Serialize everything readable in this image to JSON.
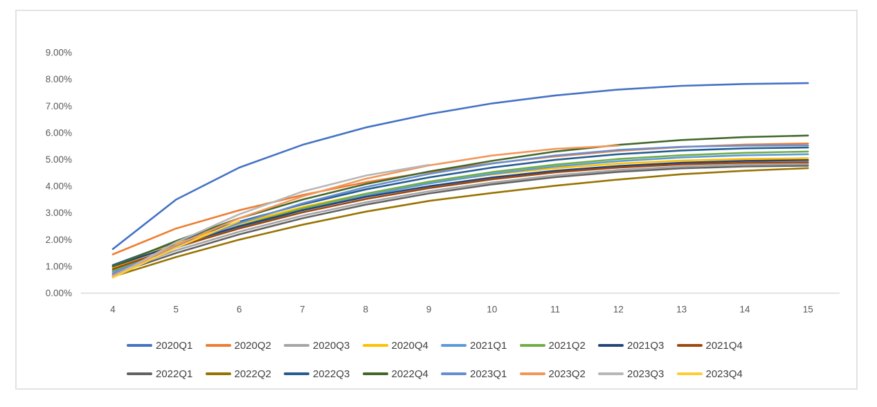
{
  "chart_data": {
    "type": "line",
    "title": "",
    "xlabel": "",
    "ylabel": "",
    "grid": false,
    "legend_position": "bottom",
    "x_ticks": [
      "4",
      "5",
      "6",
      "7",
      "8",
      "9",
      "10",
      "11",
      "12",
      "13",
      "14",
      "15"
    ],
    "y_ticks": [
      "0.00%",
      "1.00%",
      "2.00%",
      "3.00%",
      "4.00%",
      "5.00%",
      "6.00%",
      "7.00%",
      "8.00%",
      "9.00%"
    ],
    "x_range": [
      4,
      15
    ],
    "y_range_percent": [
      0,
      9
    ],
    "x_start": 4,
    "series": [
      {
        "name": "2020Q1",
        "color": "#4472C4",
        "values": [
          1.65,
          3.5,
          4.7,
          5.55,
          6.2,
          6.7,
          7.1,
          7.4,
          7.62,
          7.76,
          7.83,
          7.86
        ]
      },
      {
        "name": "2020Q2",
        "color": "#ED7D31",
        "values": [
          1.45,
          2.42,
          3.1,
          3.67,
          4.15,
          4.53,
          4.86,
          5.12,
          5.33,
          5.47,
          5.56,
          5.6
        ]
      },
      {
        "name": "2020Q3",
        "color": "#A5A5A5",
        "values": [
          0.75,
          1.6,
          2.3,
          2.9,
          3.4,
          3.81,
          4.14,
          4.41,
          4.61,
          4.74,
          4.81,
          4.84
        ]
      },
      {
        "name": "2020Q4",
        "color": "#FFC000",
        "values": [
          0.95,
          1.85,
          2.6,
          3.22,
          3.72,
          4.12,
          4.44,
          4.68,
          4.85,
          4.96,
          5.02,
          5.05
        ]
      },
      {
        "name": "2021Q1",
        "color": "#5B9BD5",
        "values": [
          0.8,
          1.7,
          2.45,
          3.1,
          3.65,
          4.1,
          4.46,
          4.74,
          4.94,
          5.08,
          5.16,
          5.2
        ]
      },
      {
        "name": "2021Q2",
        "color": "#70AD47",
        "values": [
          0.85,
          1.75,
          2.52,
          3.17,
          3.72,
          4.17,
          4.53,
          4.81,
          5.02,
          5.16,
          5.25,
          5.3
        ]
      },
      {
        "name": "2021Q3",
        "color": "#264478",
        "values": [
          1.0,
          1.8,
          2.5,
          3.1,
          3.6,
          4.0,
          4.33,
          4.58,
          4.76,
          4.88,
          4.95,
          4.98
        ]
      },
      {
        "name": "2021Q4",
        "color": "#9E480E",
        "values": [
          0.9,
          1.72,
          2.42,
          3.02,
          3.52,
          3.93,
          4.26,
          4.52,
          4.7,
          4.82,
          4.88,
          4.9
        ]
      },
      {
        "name": "2022Q1",
        "color": "#636363",
        "values": [
          0.7,
          1.5,
          2.2,
          2.8,
          3.31,
          3.73,
          4.07,
          4.34,
          4.54,
          4.67,
          4.74,
          4.77
        ]
      },
      {
        "name": "2022Q2",
        "color": "#997300",
        "values": [
          0.62,
          1.35,
          2.0,
          2.56,
          3.05,
          3.45,
          3.75,
          4.02,
          4.25,
          4.45,
          4.58,
          4.68
        ]
      },
      {
        "name": "2022Q3",
        "color": "#255E91",
        "values": [
          1.05,
          1.92,
          2.67,
          3.32,
          3.88,
          4.33,
          4.7,
          4.99,
          5.2,
          5.34,
          5.42,
          5.45
        ]
      },
      {
        "name": "2022Q4",
        "color": "#43682B",
        "values": [
          1.0,
          1.95,
          2.8,
          3.5,
          4.08,
          4.55,
          4.95,
          5.3,
          5.55,
          5.73,
          5.84,
          5.9
        ]
      },
      {
        "name": "2023Q1",
        "color": "#698ED0",
        "values": [
          0.72,
          1.75,
          2.62,
          3.36,
          3.97,
          4.46,
          4.85,
          5.15,
          5.36,
          5.48,
          5.52,
          5.53
        ]
      },
      {
        "name": "2023Q2",
        "color": "#F1975A",
        "values": [
          0.65,
          1.8,
          2.8,
          3.62,
          4.28,
          4.78,
          5.15,
          5.4,
          5.52
        ]
      },
      {
        "name": "2023Q3",
        "color": "#B7B7B7",
        "values": [
          0.6,
          1.9,
          2.95,
          3.8,
          4.4,
          4.8
        ]
      },
      {
        "name": "2023Q4",
        "color": "#FFCD33",
        "values": [
          0.58,
          1.7,
          2.7
        ]
      }
    ]
  },
  "style": {
    "frame_border_color": "#e2e2e2",
    "axis_line_color": "#d9d9d9",
    "tick_label_color": "#595959",
    "legend_text_color": "#404040",
    "background": "#ffffff"
  }
}
